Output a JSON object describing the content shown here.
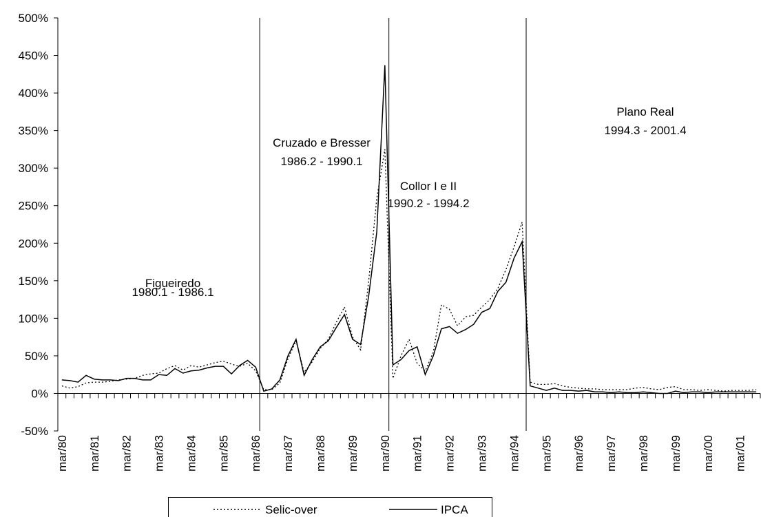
{
  "chart_data": {
    "type": "line",
    "categories": [
      "mar/80",
      null,
      null,
      null,
      "mar/81",
      null,
      null,
      null,
      "mar/82",
      null,
      null,
      null,
      "mar/83",
      null,
      null,
      null,
      "mar/84",
      null,
      null,
      null,
      "mar/85",
      null,
      null,
      null,
      "mar/86",
      null,
      null,
      null,
      "mar/87",
      null,
      null,
      null,
      "mar/88",
      null,
      null,
      null,
      "mar/89",
      null,
      null,
      null,
      "mar/90",
      null,
      null,
      null,
      "mar/91",
      null,
      null,
      null,
      "mar/92",
      null,
      null,
      null,
      "mar/93",
      null,
      null,
      null,
      "mar/94",
      null,
      null,
      null,
      "mar/95",
      null,
      null,
      null,
      "mar/96",
      null,
      null,
      null,
      "mar/97",
      null,
      null,
      null,
      "mar/98",
      null,
      null,
      null,
      "mar/99",
      null,
      null,
      null,
      "mar/00",
      null,
      null,
      null,
      "mar/01",
      null,
      null
    ],
    "series": [
      {
        "name": "Selic-over",
        "color": "#000000",
        "dash": "dotted",
        "values": [
          10,
          7,
          9,
          14,
          15,
          15,
          16,
          18,
          19,
          20,
          24,
          26,
          27,
          33,
          37,
          31,
          37,
          35,
          38,
          41,
          43,
          39,
          36,
          40,
          30,
          5,
          5,
          14,
          46,
          70,
          28,
          42,
          60,
          72,
          95,
          115,
          75,
          58,
          150,
          260,
          325,
          20,
          50,
          72,
          40,
          30,
          55,
          118,
          112,
          90,
          102,
          104,
          115,
          125,
          140,
          165,
          195,
          228,
          15,
          12,
          12,
          13,
          10,
          8,
          7,
          6,
          6,
          5,
          5,
          5,
          5,
          7,
          8,
          6,
          5,
          8,
          9,
          5,
          5,
          4,
          5,
          4,
          3,
          4,
          4,
          4,
          5
        ]
      },
      {
        "name": "IPCA",
        "color": "#000000",
        "dash": "solid",
        "values": [
          18,
          17,
          15,
          24,
          19,
          18,
          18,
          17,
          20,
          20,
          18,
          18,
          25,
          24,
          33,
          27,
          30,
          31,
          34,
          36,
          36,
          26,
          37,
          44,
          35,
          3,
          6,
          18,
          50,
          72,
          24,
          45,
          62,
          70,
          88,
          105,
          72,
          65,
          130,
          215,
          437,
          38,
          45,
          57,
          62,
          25,
          50,
          86,
          89,
          80,
          85,
          92,
          108,
          113,
          136,
          148,
          180,
          202,
          10,
          7,
          4,
          7,
          4,
          4,
          3,
          4,
          2,
          2,
          1,
          2,
          1,
          1,
          2,
          1,
          0,
          0,
          3,
          1,
          2,
          2,
          1,
          2,
          2,
          2,
          2,
          2,
          2
        ]
      }
    ],
    "annotations": [
      {
        "text": "Figueiredo",
        "period": "1980.1 - 1986.1"
      },
      {
        "text": "Cruzado e Bresser",
        "period": "1986.2 - 1990.1"
      },
      {
        "text": "Collor I e II",
        "period": "1990.2 - 1994.2"
      },
      {
        "text": "Plano Real",
        "period": "1994.3 - 2001.4"
      }
    ],
    "ylim": [
      -50,
      500
    ],
    "yticks": [
      {
        "value": -50,
        "label": "-50%"
      },
      {
        "value": 0,
        "label": "0%"
      },
      {
        "value": 50,
        "label": "50%"
      },
      {
        "value": 100,
        "label": "100%"
      },
      {
        "value": 150,
        "label": "150%"
      },
      {
        "value": 200,
        "label": "200%"
      },
      {
        "value": 250,
        "label": "250%"
      },
      {
        "value": 300,
        "label": "300%"
      },
      {
        "value": 350,
        "label": "350%"
      },
      {
        "value": 400,
        "label": "400%"
      },
      {
        "value": 450,
        "label": "450%"
      },
      {
        "value": 500,
        "label": "500%"
      }
    ],
    "legend": "bottom"
  }
}
